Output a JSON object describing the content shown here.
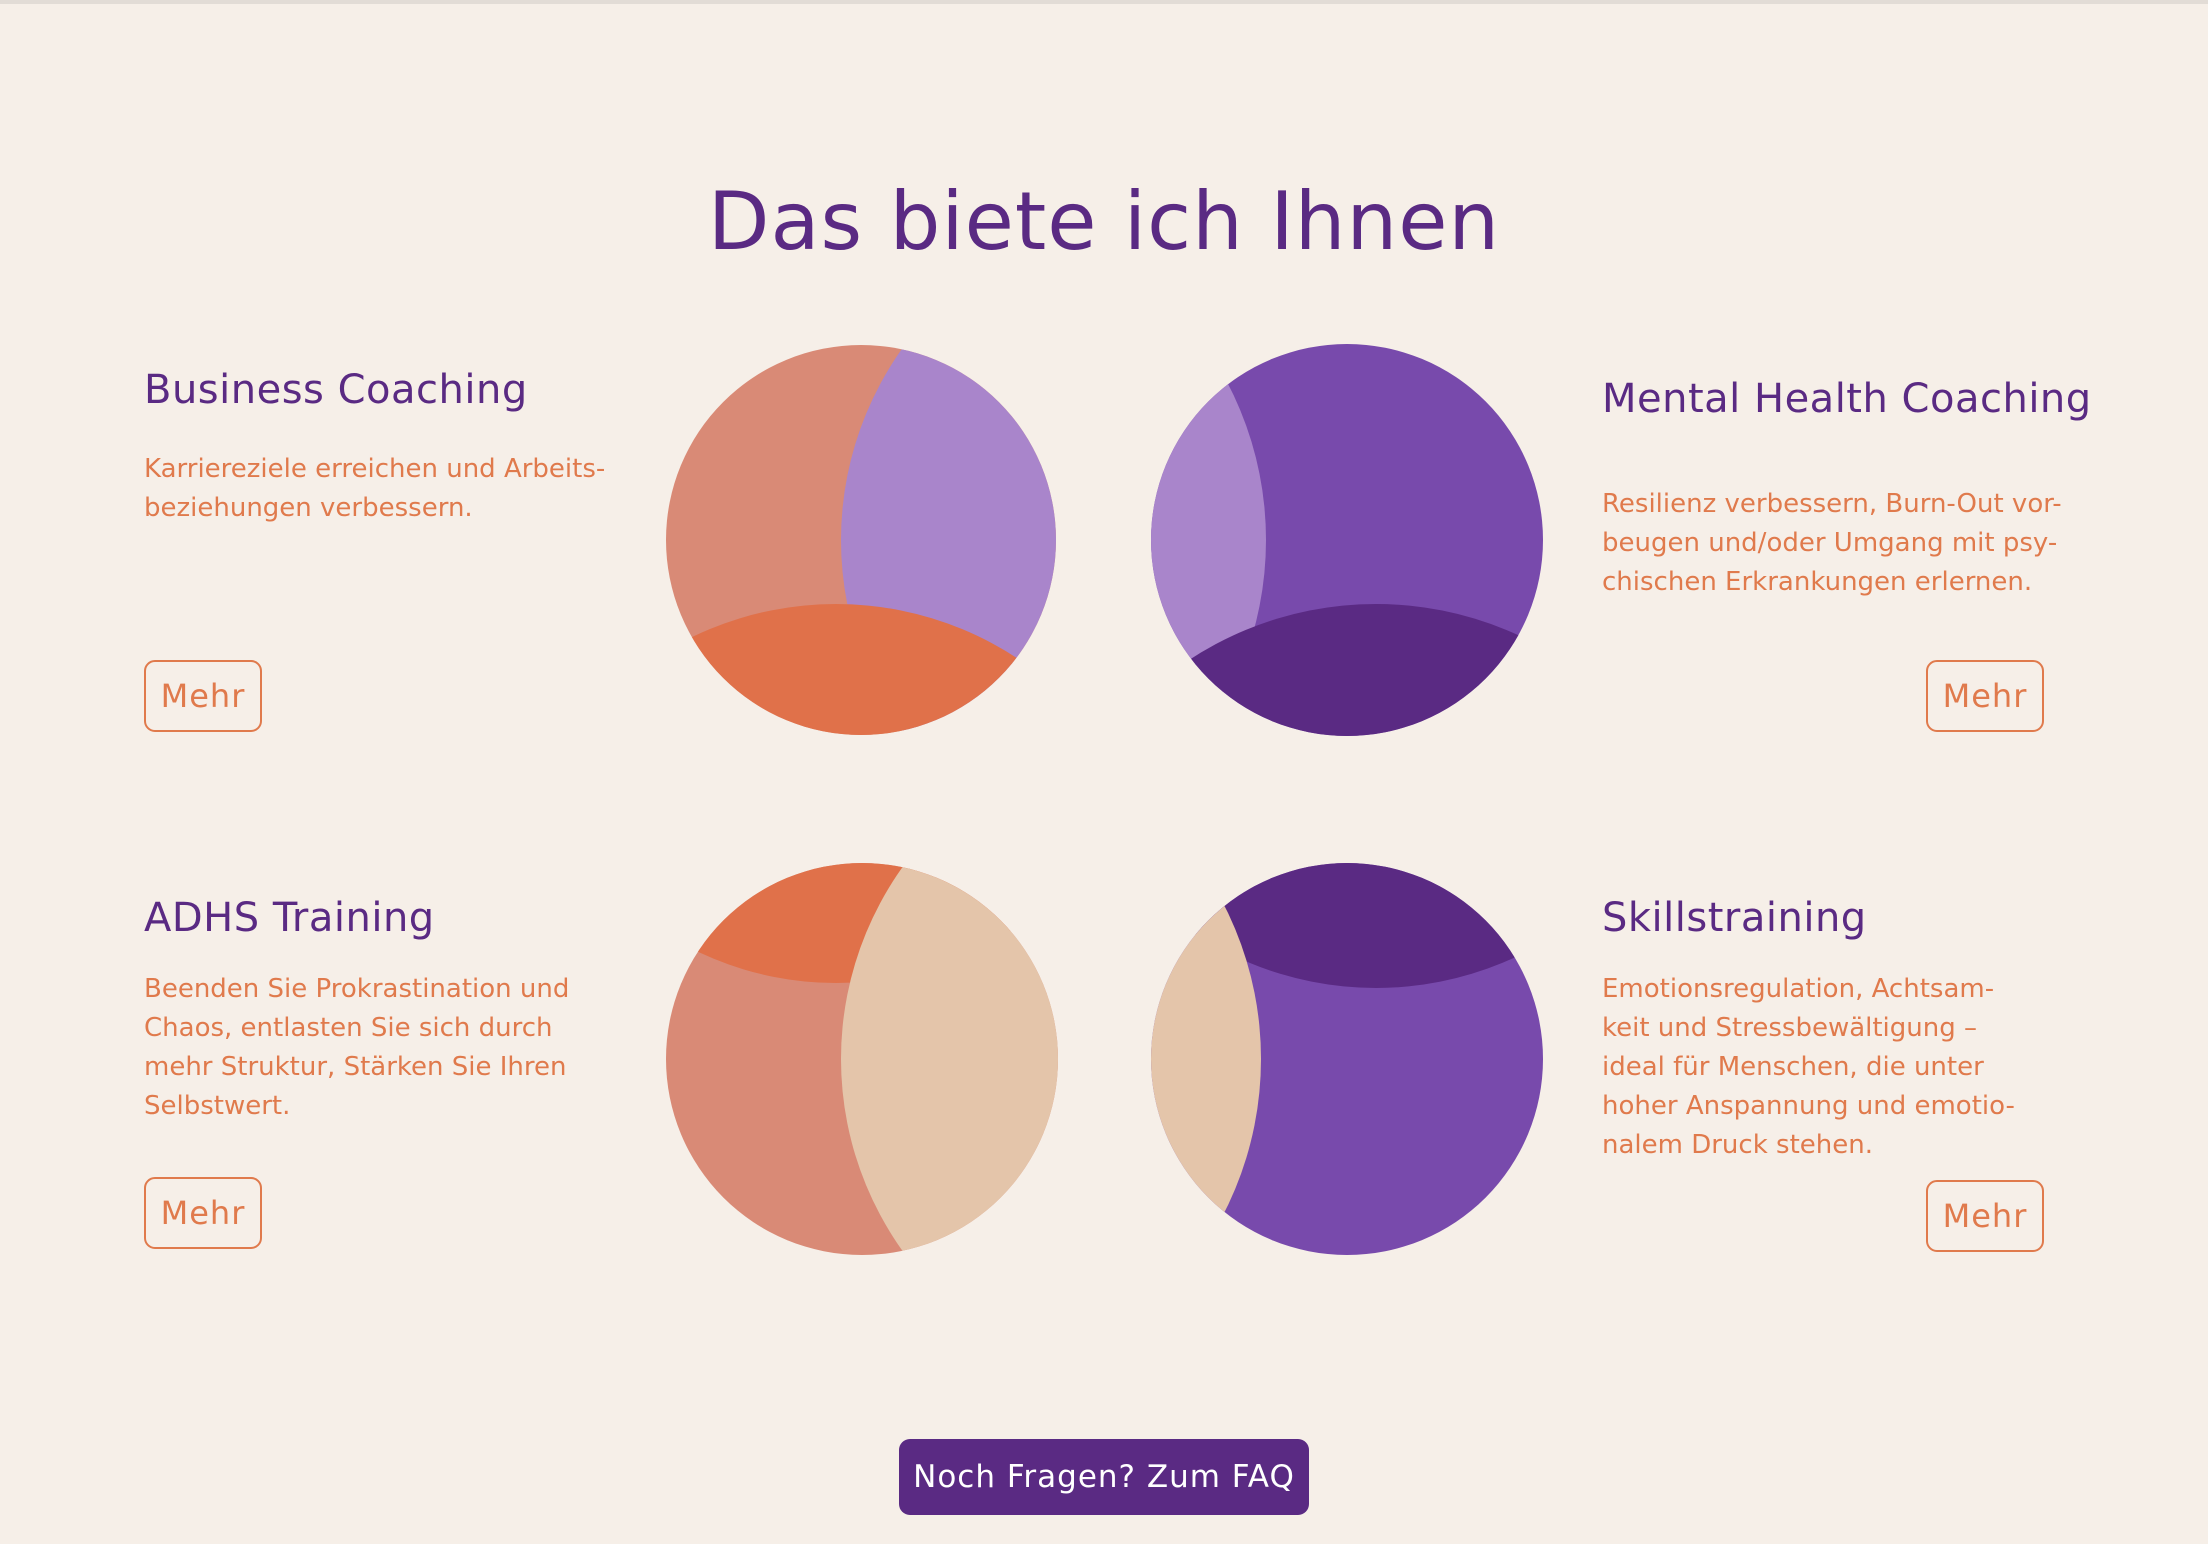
{
  "page": {
    "title": "Das biete ich Ihnen"
  },
  "services": {
    "business": {
      "title": "Business Coaching",
      "desc_lines": [
        "Karriereziele erreichen und Arbeits-",
        "beziehungen verbessern."
      ],
      "button": "Mehr"
    },
    "mental": {
      "title": "Mental Health Coaching",
      "desc_lines": [
        "Resilienz verbessern, Burn-Out vor-",
        "beugen und/oder Umgang mit psy-",
        "chischen Erkrankungen erlernen."
      ],
      "button": "Mehr"
    },
    "adhs": {
      "title": "ADHS Training",
      "desc_lines": [
        "Beenden Sie Prokrastination und",
        "Chaos, entlasten Sie sich durch",
        "mehr Struktur, Stärken Sie Ihren",
        "Selbstwert."
      ],
      "button": "Mehr"
    },
    "skills": {
      "title": "Skillstraining",
      "desc_lines": [
        "Emotionsregulation, Achtsam-",
        "keit und Stressbewältigung –",
        "ideal für Menschen, die unter",
        "hoher Anspannung und emotio-",
        "nalem Druck stehen."
      ],
      "button": "Mehr"
    }
  },
  "cta": {
    "faq": "Noch Fragen? Zum FAQ"
  },
  "colors": {
    "background": "#f6efe8",
    "purple_dark": "#5a2a83",
    "purple": "#784aac",
    "lavender": "#a985cb",
    "salmon": "#d98a76",
    "orange": "#e0714a",
    "beige": "#e4c5aa",
    "accent_text": "#e07a4c"
  }
}
